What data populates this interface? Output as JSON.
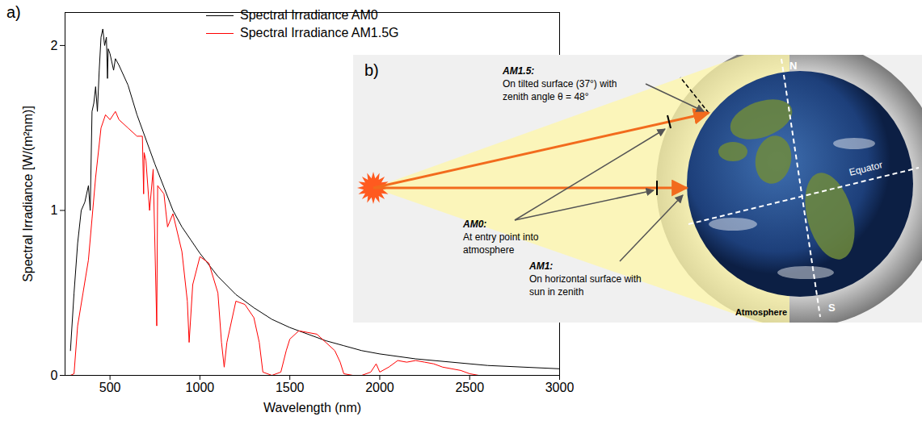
{
  "chart_data": {
    "type": "line",
    "title": "a)",
    "xlabel": "Wavelength (nm)",
    "ylabel": "Spectral Irradiance [W/(m²nm)]",
    "xlim": [
      250,
      3000
    ],
    "xticks": [
      500,
      1000,
      1500,
      2000,
      2500,
      3000
    ],
    "ylim": [
      0,
      2.2
    ],
    "yticks": [
      0,
      1,
      2
    ],
    "grid": false,
    "legend": "top",
    "series": [
      {
        "name": "Spectral Irradiance AM0",
        "color": "#000000",
        "x": [
          280,
          300,
          320,
          340,
          360,
          380,
          390,
          400,
          410,
          420,
          430,
          440,
          450,
          460,
          470,
          480,
          486,
          490,
          500,
          520,
          530,
          550,
          600,
          650,
          700,
          750,
          800,
          850,
          900,
          950,
          1000,
          1100,
          1200,
          1300,
          1400,
          1500,
          1600,
          1700,
          1800,
          1900,
          2000,
          2200,
          2400,
          2600,
          2800,
          3000
        ],
        "values": [
          0.15,
          0.5,
          0.8,
          1.0,
          1.05,
          1.15,
          1.0,
          1.6,
          1.65,
          1.75,
          1.6,
          1.85,
          2.05,
          2.1,
          2.0,
          2.05,
          1.8,
          1.98,
          1.95,
          1.85,
          1.92,
          1.88,
          1.76,
          1.58,
          1.43,
          1.28,
          1.14,
          1.0,
          0.9,
          0.82,
          0.74,
          0.6,
          0.49,
          0.41,
          0.34,
          0.29,
          0.25,
          0.21,
          0.18,
          0.15,
          0.13,
          0.1,
          0.08,
          0.06,
          0.05,
          0.04
        ]
      },
      {
        "name": "Spectral Irradiance AM1.5G",
        "color": "#ff0000",
        "x": [
          280,
          300,
          320,
          350,
          380,
          400,
          420,
          450,
          475,
          500,
          530,
          550,
          600,
          650,
          680,
          687,
          690,
          700,
          720,
          740,
          760,
          765,
          800,
          820,
          850,
          900,
          930,
          940,
          960,
          1000,
          1050,
          1100,
          1120,
          1135,
          1150,
          1200,
          1250,
          1300,
          1330,
          1350,
          1400,
          1450,
          1480,
          1500,
          1550,
          1600,
          1650,
          1700,
          1750,
          1780,
          1800,
          1850,
          1900,
          1950,
          1980,
          2000,
          2050,
          2100,
          2150,
          2200,
          2250,
          2300,
          2350,
          2400,
          2450,
          2500,
          2550
        ],
        "values": [
          0,
          0.01,
          0.3,
          0.5,
          0.7,
          0.95,
          1.2,
          1.5,
          1.58,
          1.55,
          1.6,
          1.55,
          1.5,
          1.45,
          1.45,
          1.1,
          1.35,
          1.3,
          1.0,
          1.25,
          0.3,
          1.15,
          1.1,
          0.9,
          0.98,
          0.75,
          0.45,
          0.2,
          0.55,
          0.72,
          0.68,
          0.5,
          0.2,
          0.05,
          0.2,
          0.45,
          0.43,
          0.35,
          0.2,
          0.02,
          0,
          0.02,
          0.15,
          0.22,
          0.27,
          0.26,
          0.25,
          0.2,
          0.15,
          0.08,
          0.01,
          0,
          0,
          0.02,
          0.07,
          0.02,
          0.05,
          0.09,
          0.08,
          0.09,
          0.08,
          0.07,
          0.05,
          0.04,
          0.03,
          0.01,
          0
        ]
      }
    ]
  },
  "diagram": {
    "label": "b)",
    "annotations": [
      {
        "title": "AM1.5:",
        "lines": [
          "On tilted surface (37°) with",
          "zenith angle θ = 48°"
        ]
      },
      {
        "title": "AM0:",
        "lines": [
          "At entry point into",
          "atmosphere"
        ]
      },
      {
        "title": "AM1:",
        "lines": [
          "On horizontal surface with",
          "sun in zenith"
        ]
      }
    ],
    "north": "N",
    "south": "S",
    "equator": "Equator",
    "atmosphere": "Atmosphere"
  }
}
